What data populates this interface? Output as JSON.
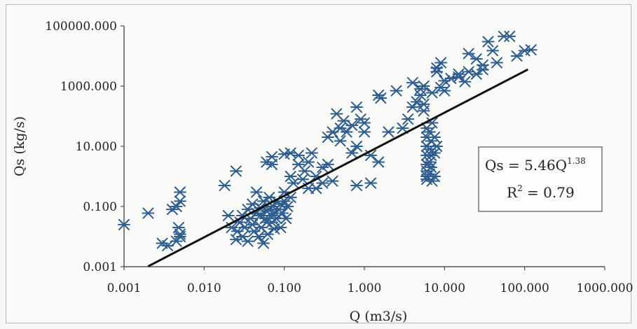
{
  "chart_data": {
    "type": "scatter",
    "title": "",
    "xlabel": "Q (m3/s)",
    "ylabel": "Qs (kg/s)",
    "x_scale": "log",
    "y_scale": "log",
    "xlim": [
      0.001,
      1000
    ],
    "ylim": [
      0.001,
      100000
    ],
    "x_ticks": [
      "0.001",
      "0.010",
      "0.100",
      "1.000",
      "10.000",
      "100.000",
      "1000.000"
    ],
    "y_ticks": [
      "0.001",
      "0.100",
      "10.000",
      "1000.000",
      "100000.000"
    ],
    "grid": false,
    "marker": "asterisk",
    "marker_color": "#2e5d8f",
    "trendline": {
      "color": "#111111",
      "a": 5.46,
      "b": 1.38,
      "x_range": [
        0.002,
        110
      ],
      "equation": "Qs = 5.46Q",
      "exponent": "1.38",
      "r2_prefix": "R",
      "r2_exp": "2",
      "r2_value": " = 0.79"
    },
    "series": [
      {
        "points": [
          [
            0.001,
            0.025
          ],
          [
            0.002,
            0.06
          ],
          [
            0.003,
            0.006
          ],
          [
            0.0035,
            0.005
          ],
          [
            0.004,
            0.08
          ],
          [
            0.0045,
            0.1
          ],
          [
            0.005,
            0.3
          ],
          [
            0.005,
            0.15
          ],
          [
            0.005,
            0.01
          ],
          [
            0.005,
            0.012
          ],
          [
            0.0048,
            0.02
          ],
          [
            0.0045,
            0.007
          ],
          [
            0.018,
            0.5
          ],
          [
            0.02,
            0.05
          ],
          [
            0.022,
            0.02
          ],
          [
            0.025,
            1.5
          ],
          [
            0.025,
            0.008
          ],
          [
            0.026,
            0.015
          ],
          [
            0.028,
            0.03
          ],
          [
            0.03,
            0.05
          ],
          [
            0.03,
            0.01
          ],
          [
            0.032,
            0.02
          ],
          [
            0.035,
            0.08
          ],
          [
            0.035,
            0.007
          ],
          [
            0.038,
            0.04
          ],
          [
            0.04,
            0.12
          ],
          [
            0.04,
            0.025
          ],
          [
            0.042,
            0.015
          ],
          [
            0.045,
            0.3
          ],
          [
            0.045,
            0.06
          ],
          [
            0.048,
            0.01
          ],
          [
            0.05,
            0.05
          ],
          [
            0.05,
            0.09
          ],
          [
            0.052,
            0.02
          ],
          [
            0.055,
            0.15
          ],
          [
            0.055,
            0.006
          ],
          [
            0.058,
            0.04
          ],
          [
            0.06,
            0.07
          ],
          [
            0.06,
            0.03
          ],
          [
            0.062,
            0.012
          ],
          [
            0.065,
            0.2
          ],
          [
            0.065,
            0.08
          ],
          [
            0.068,
            0.05
          ],
          [
            0.07,
            0.03
          ],
          [
            0.07,
            2.5
          ],
          [
            0.072,
            0.1
          ],
          [
            0.075,
            0.018
          ],
          [
            0.078,
            0.06
          ],
          [
            0.08,
            0.15
          ],
          [
            0.08,
            0.04
          ],
          [
            0.085,
            0.08
          ],
          [
            0.09,
            0.02
          ],
          [
            0.09,
            0.12
          ],
          [
            0.095,
            0.06
          ],
          [
            0.1,
            0.3
          ],
          [
            0.1,
            0.15
          ],
          [
            0.105,
            0.04
          ],
          [
            0.11,
            0.1
          ],
          [
            0.12,
            0.2
          ],
          [
            0.06,
            3.0
          ],
          [
            0.07,
            4.5
          ],
          [
            0.1,
            5.5
          ],
          [
            0.12,
            1.0
          ],
          [
            0.12,
            6.0
          ],
          [
            0.13,
            0.6
          ],
          [
            0.15,
            5.0
          ],
          [
            0.15,
            2.5
          ],
          [
            0.17,
            0.8
          ],
          [
            0.18,
            1.5
          ],
          [
            0.2,
            3.0
          ],
          [
            0.2,
            0.4
          ],
          [
            0.22,
            6.0
          ],
          [
            0.25,
            1.0
          ],
          [
            0.25,
            0.4
          ],
          [
            0.3,
            0.6
          ],
          [
            0.3,
            2.0
          ],
          [
            0.35,
            2.5
          ],
          [
            0.35,
            20
          ],
          [
            0.4,
            30
          ],
          [
            0.4,
            0.7
          ],
          [
            0.45,
            120
          ],
          [
            0.5,
            40
          ],
          [
            0.5,
            15
          ],
          [
            0.55,
            70
          ],
          [
            0.6,
            30
          ],
          [
            0.7,
            50
          ],
          [
            0.7,
            6.0
          ],
          [
            0.8,
            10
          ],
          [
            0.8,
            200
          ],
          [
            0.8,
            0.5
          ],
          [
            0.9,
            80
          ],
          [
            1.0,
            30
          ],
          [
            1.0,
            60
          ],
          [
            1.2,
            0.6
          ],
          [
            1.2,
            5.0
          ],
          [
            1.5,
            500
          ],
          [
            1.5,
            3.0
          ],
          [
            1.6,
            400
          ],
          [
            2.0,
            30
          ],
          [
            2.5,
            700
          ],
          [
            3.0,
            40
          ],
          [
            3.5,
            80
          ],
          [
            4.0,
            200
          ],
          [
            4.0,
            1300
          ],
          [
            4.5,
            300
          ],
          [
            5.0,
            500
          ],
          [
            5.0,
            800
          ],
          [
            5.5,
            1000
          ],
          [
            5.5,
            250
          ],
          [
            5.5,
            150
          ],
          [
            6.0,
            40
          ],
          [
            6.0,
            20
          ],
          [
            6.0,
            10
          ],
          [
            6.0,
            5
          ],
          [
            6.0,
            2.5
          ],
          [
            6.0,
            1.5
          ],
          [
            6.0,
            1.0
          ],
          [
            6.0,
            0.8
          ],
          [
            6.5,
            30
          ],
          [
            6.5,
            8
          ],
          [
            6.5,
            3
          ],
          [
            6.5,
            1.2
          ],
          [
            6.8,
            15
          ],
          [
            6.8,
            5
          ],
          [
            6.8,
            2
          ],
          [
            7.0,
            60
          ],
          [
            7.0,
            600
          ],
          [
            7.0,
            0.7
          ],
          [
            7.5,
            20
          ],
          [
            7.5,
            6
          ],
          [
            7.5,
            1.0
          ],
          [
            8.0,
            10
          ],
          [
            8.0,
            3000
          ],
          [
            8.0,
            4000
          ],
          [
            9.0,
            6000
          ],
          [
            9.0,
            900
          ],
          [
            10,
            700
          ],
          [
            10,
            1500
          ],
          [
            12,
            1800
          ],
          [
            15,
            2500
          ],
          [
            15,
            2000
          ],
          [
            18,
            1400
          ],
          [
            20,
            3000
          ],
          [
            20,
            12000
          ],
          [
            25,
            8000
          ],
          [
            25,
            2500
          ],
          [
            30,
            5000
          ],
          [
            30,
            3500
          ],
          [
            35,
            30000
          ],
          [
            40,
            15000
          ],
          [
            45,
            6000
          ],
          [
            55,
            45000
          ],
          [
            65,
            45000
          ],
          [
            80,
            10000
          ],
          [
            100,
            15000
          ],
          [
            120,
            16000
          ]
        ]
      }
    ]
  }
}
